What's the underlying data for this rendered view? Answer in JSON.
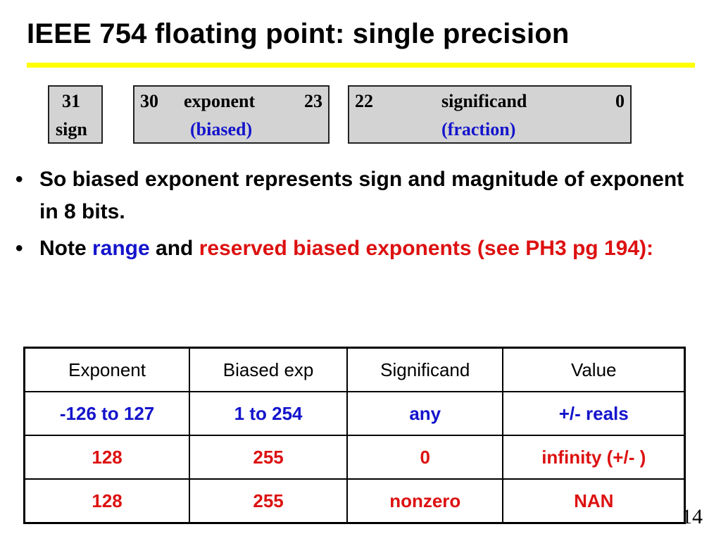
{
  "slide": {
    "title": "IEEE 754 floating point: single precision",
    "page_number": "14"
  },
  "format": {
    "sign": {
      "bit": "31",
      "label": "sign"
    },
    "exponent": {
      "bit_high": "30",
      "label": "exponent",
      "bit_low": "23",
      "note": "(biased)"
    },
    "significand": {
      "bit_high": "22",
      "label": "significand",
      "bit_low": "0",
      "note": "(fraction)"
    }
  },
  "bullets": {
    "b1": "So biased exponent represents sign and magnitude of exponent in 8 bits.",
    "b2_note": "Note ",
    "b2_range": "range",
    "b2_and": " and ",
    "b2_reserved": "reserved biased exponents (see PH3 pg 194):"
  },
  "table": {
    "headers": [
      "Exponent",
      "Biased exp",
      "Significand",
      "Value"
    ],
    "rows": [
      [
        "-126 to 127",
        "1 to 254",
        "any",
        "+/- reals"
      ],
      [
        "128",
        "255",
        "0",
        "infinity (+/- )"
      ],
      [
        "128",
        "255",
        "nonzero",
        "NAN"
      ]
    ]
  },
  "colors": {
    "highlight_rule": "#FFFF00",
    "field_fill": "#D3D3D3",
    "blue_text": "#1414CC",
    "red_text": "#DD1111"
  }
}
